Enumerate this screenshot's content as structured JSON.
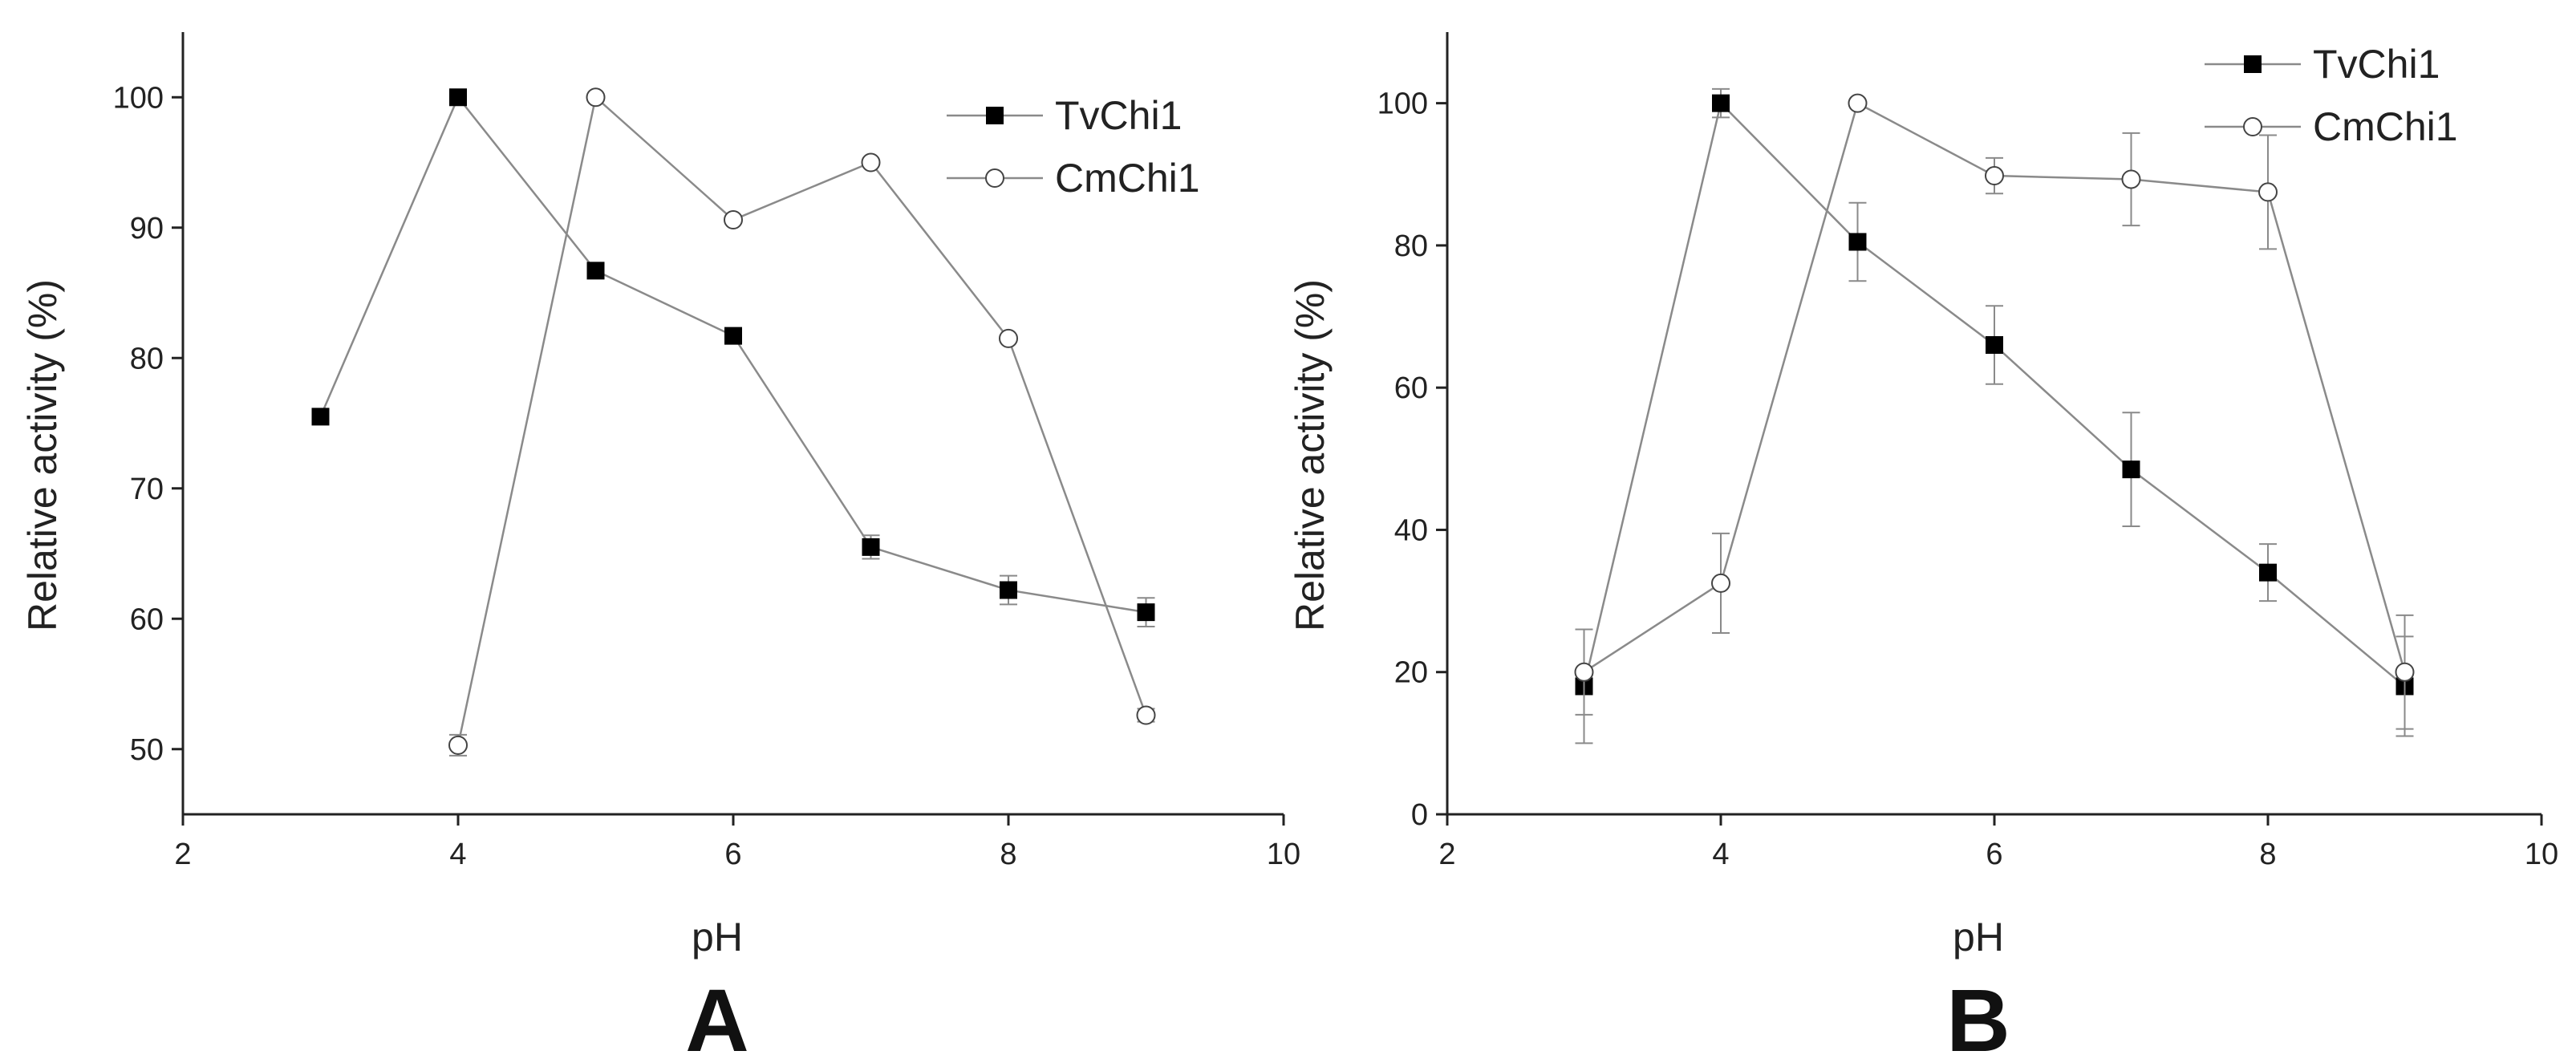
{
  "chart_data": [
    {
      "type": "line",
      "panel_label": "A",
      "xlabel": "pH",
      "ylabel": "Relative activity (%)",
      "xlim": [
        2,
        10
      ],
      "ylim": [
        45,
        105
      ],
      "xticks": [
        "2",
        "4",
        "6",
        "8",
        "10"
      ],
      "yticks": [
        "50",
        "60",
        "70",
        "80",
        "90",
        "100"
      ],
      "grid": false,
      "legend_position": "top-right",
      "series": [
        {
          "name": "TvChi1",
          "marker": "filled-square",
          "x": [
            3,
            4,
            5,
            6,
            7,
            8,
            9
          ],
          "y": [
            75.5,
            100,
            86.7,
            81.7,
            65.5,
            62.2,
            60.5
          ],
          "err": [
            0,
            0,
            0,
            0,
            0.9,
            1.1,
            1.1
          ]
        },
        {
          "name": "CmChi1",
          "marker": "open-circle",
          "x": [
            4,
            5,
            6,
            7,
            8,
            9
          ],
          "y": [
            50.3,
            100,
            90.6,
            95,
            81.5,
            52.6
          ],
          "err": [
            0.8,
            0,
            0,
            0,
            0,
            0.5
          ]
        }
      ]
    },
    {
      "type": "line",
      "panel_label": "B",
      "xlabel": "pH",
      "ylabel": "Relative activity (%)",
      "xlim": [
        2,
        10
      ],
      "ylim": [
        0,
        110
      ],
      "xticks": [
        "2",
        "4",
        "6",
        "8",
        "10"
      ],
      "yticks": [
        "0",
        "20",
        "40",
        "60",
        "80",
        "100"
      ],
      "grid": false,
      "legend_position": "top-right",
      "series": [
        {
          "name": "TvChi1",
          "marker": "filled-square",
          "x": [
            3,
            4,
            5,
            6,
            7,
            8,
            9
          ],
          "y": [
            18,
            100,
            80.5,
            66,
            48.5,
            34,
            18
          ],
          "err": [
            8,
            2,
            5.5,
            5.5,
            8,
            4,
            7
          ]
        },
        {
          "name": "CmChi1",
          "marker": "open-circle",
          "x": [
            3,
            4,
            5,
            6,
            7,
            8,
            9
          ],
          "y": [
            20,
            32.5,
            100,
            89.8,
            89.3,
            87.5,
            20
          ],
          "err": [
            6,
            7,
            0,
            2.5,
            6.5,
            8,
            8
          ]
        }
      ]
    }
  ],
  "colors": {
    "line": "#8a8a8a",
    "marker_fill": "#000000",
    "axis": "#222222"
  }
}
